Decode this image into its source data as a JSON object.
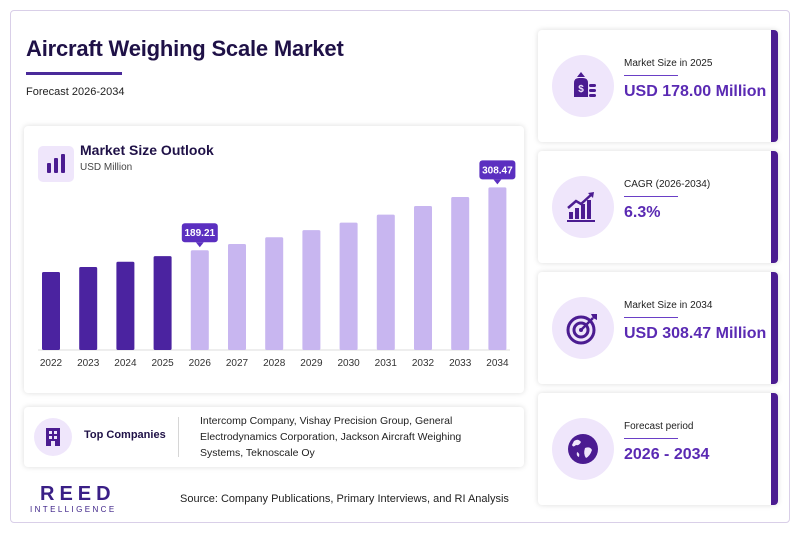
{
  "header": {
    "title": "Aircraft Weighing Scale Market",
    "subtitle": "Forecast 2026-2034"
  },
  "chart_panel": {
    "title": "Market Size Outlook",
    "unit": "USD Million",
    "icon": "bar-chart-icon"
  },
  "chart_data": {
    "type": "bar",
    "categories": [
      "2022",
      "2023",
      "2024",
      "2025",
      "2026",
      "2027",
      "2028",
      "2029",
      "2030",
      "2031",
      "2032",
      "2033",
      "2034"
    ],
    "values": [
      148.0,
      157.3,
      167.3,
      178.0,
      189.21,
      201.1,
      213.8,
      227.3,
      241.6,
      256.8,
      273.0,
      290.2,
      308.47
    ],
    "historical_through": "2025",
    "labeled": {
      "2026": "189.21",
      "2034": "308.47"
    },
    "ylim": [
      0,
      330
    ],
    "colors": {
      "historical": "#4b23a0",
      "forecast": "#c8b6f0",
      "label_bg": "#5b2fc0"
    }
  },
  "companies": {
    "label": "Top Companies",
    "text": "Intercomp Company, Vishay Precision Group, General Electrodynamics Corporation, Jackson Aircraft Weighing Systems, Teknoscale Oy",
    "icon": "building-icon"
  },
  "footer": {
    "logo_main": "REED",
    "logo_sub": "INTELLIGENCE",
    "source": "Source: Company Publications, Primary Interviews, and RI Analysis"
  },
  "stats": [
    {
      "label": "Market Size in 2025",
      "value": "USD 178.00 Million",
      "icon": "money-bag-icon"
    },
    {
      "label": "CAGR (2026-2034)",
      "value": "6.3%",
      "icon": "growth-chart-icon"
    },
    {
      "label": "Market Size in 2034",
      "value": "USD 308.47 Million",
      "icon": "target-icon"
    },
    {
      "label": "Forecast period",
      "value": "2026 - 2034",
      "icon": "globe-icon"
    }
  ],
  "theme": {
    "primary": "#1f1147",
    "accent": "#5a2ab3",
    "light": "#efe6fb"
  }
}
